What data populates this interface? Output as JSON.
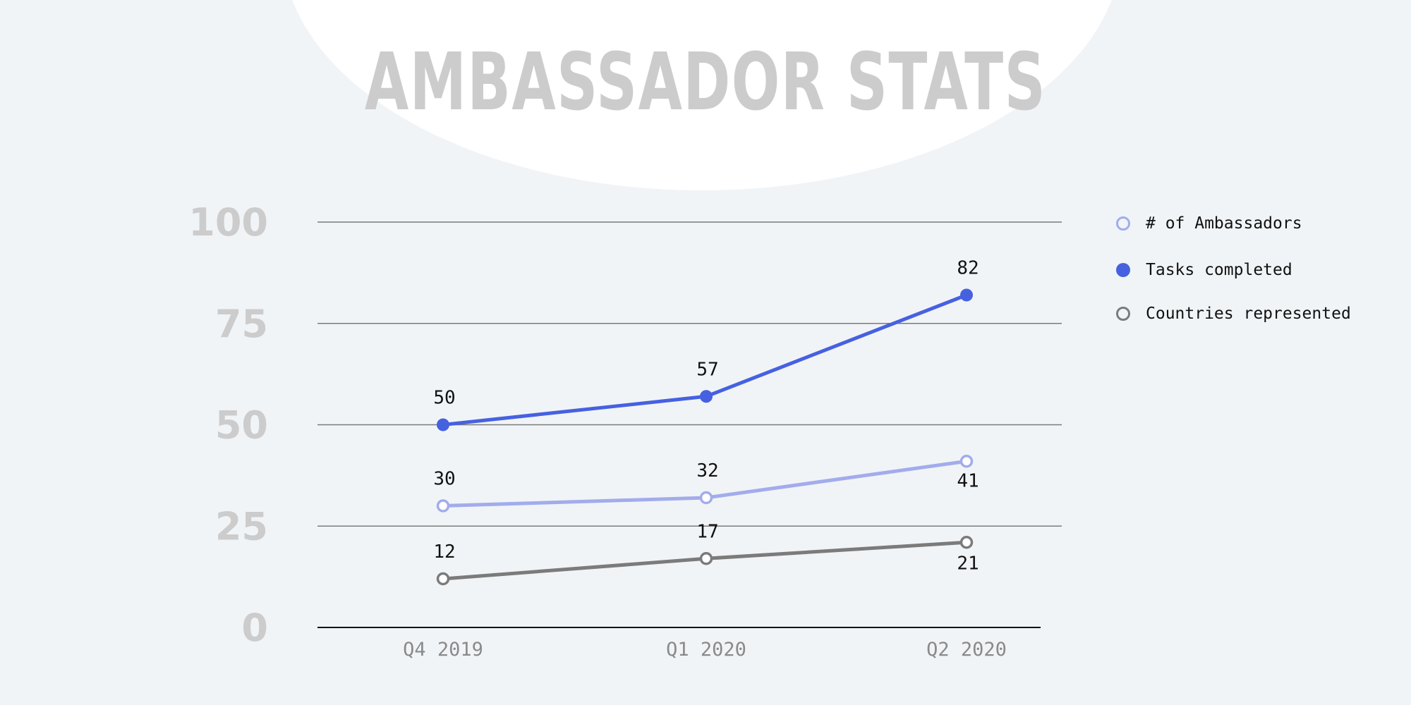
{
  "chart_data": {
    "type": "line",
    "title": "AMBASSADOR STATS",
    "categories": [
      "Q4 2019",
      "Q1 2020",
      "Q2 2020"
    ],
    "ylim": [
      0,
      100
    ],
    "yticks": [
      "0",
      "25",
      "50",
      "75",
      "100"
    ],
    "grid": true,
    "legend_position": "right",
    "series": [
      {
        "name": "# of Ambassadors",
        "values": [
          30,
          32,
          41
        ],
        "color": "#a2acec",
        "marker": "hollow",
        "labels": [
          "30",
          "32",
          "41"
        ]
      },
      {
        "name": "Tasks completed",
        "values": [
          50,
          57,
          82
        ],
        "color": "#4661e0",
        "marker": "filled",
        "labels": [
          "50",
          "57",
          "82"
        ]
      },
      {
        "name": "Countries represented",
        "values": [
          12,
          17,
          21
        ],
        "color": "#7b7b7b",
        "marker": "hollow",
        "labels": [
          "12",
          "17",
          "21"
        ]
      }
    ]
  }
}
